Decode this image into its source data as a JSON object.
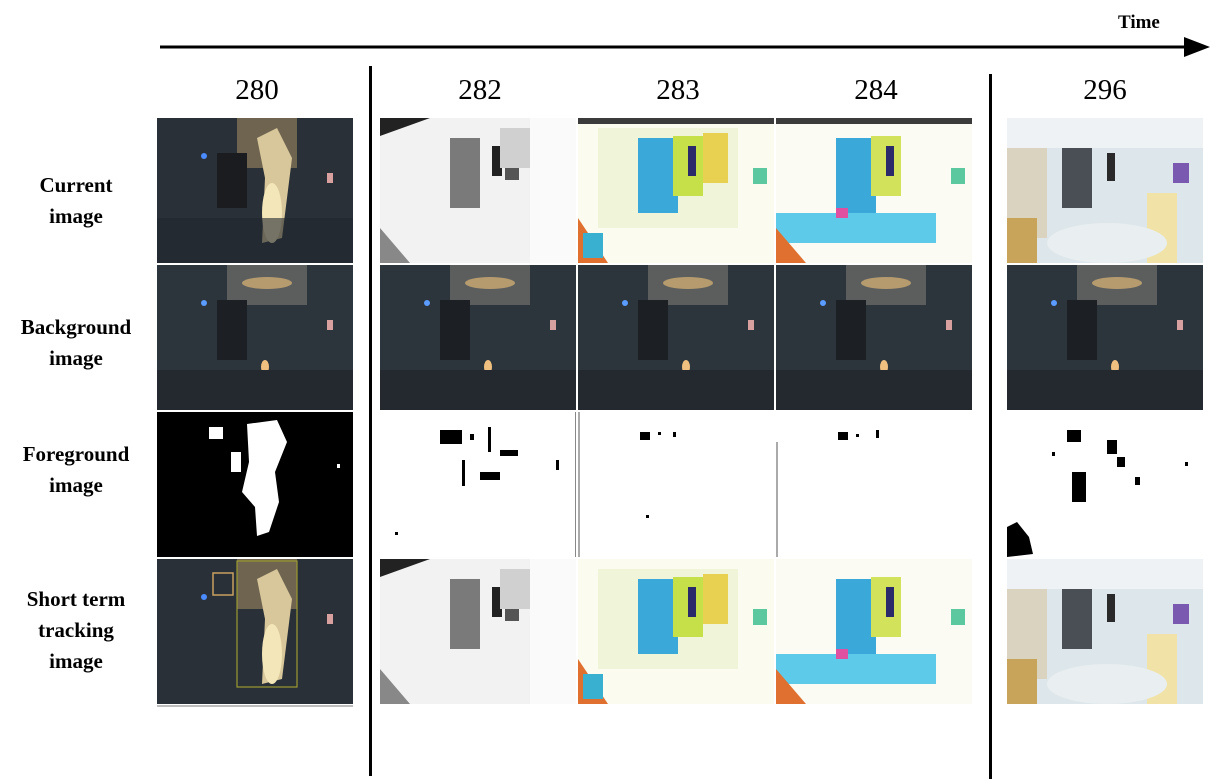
{
  "time_label": "Time",
  "frames": [
    "280",
    "282",
    "283",
    "284",
    "296"
  ],
  "rows": [
    {
      "label_lines": [
        "Current",
        "image"
      ],
      "kind": "current"
    },
    {
      "label_lines": [
        "Background",
        "image"
      ],
      "kind": "background"
    },
    {
      "label_lines": [
        "Foreground",
        "image"
      ],
      "kind": "foreground"
    },
    {
      "label_lines": [
        "Short term",
        "tracking",
        "image"
      ],
      "kind": "tracking"
    }
  ]
}
